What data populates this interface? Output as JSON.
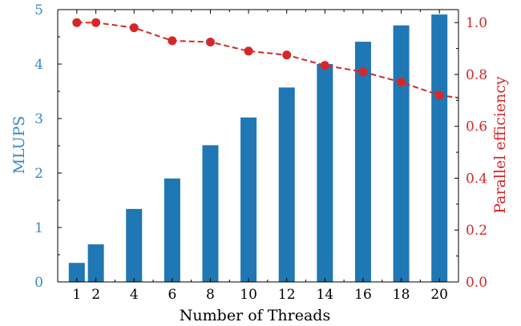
{
  "chart_data": {
    "type": "bar",
    "title": "",
    "xlabel": "Number of Threads",
    "ylabel_left": "MLUPS",
    "ylabel_right": "Parallel efficiency",
    "x": [
      1,
      2,
      4,
      6,
      8,
      10,
      12,
      14,
      16,
      18,
      20
    ],
    "xlim": [
      0,
      21
    ],
    "ylim_left": [
      0,
      5
    ],
    "ylim_right": [
      0,
      1.05
    ],
    "yticks_left": [
      "0",
      "1",
      "2",
      "3",
      "4",
      "5"
    ],
    "yticks_right": [
      "0.0",
      "0.2",
      "0.4",
      "0.6",
      "0.8",
      "1.0"
    ],
    "xticks": [
      "1",
      "2",
      "4",
      "6",
      "8",
      "10",
      "12",
      "14",
      "16",
      "18",
      "20"
    ],
    "series": [
      {
        "type": "bar",
        "axis": "left",
        "color": "#1f77b4",
        "values": [
          0.35,
          0.69,
          1.34,
          1.9,
          2.51,
          3.02,
          3.57,
          4.0,
          4.41,
          4.71,
          4.91
        ]
      },
      {
        "type": "line",
        "axis": "right",
        "color": "#d62728",
        "linestyle": "dashed",
        "marker": "circle",
        "values": [
          1.0,
          1.0,
          0.98,
          0.93,
          0.925,
          0.89,
          0.875,
          0.835,
          0.81,
          0.77,
          0.72,
          0.71
        ],
        "x": [
          1,
          2,
          4,
          6,
          8,
          10,
          12,
          14,
          16,
          18,
          20,
          21
        ]
      }
    ],
    "grid": false,
    "legend": "none"
  }
}
